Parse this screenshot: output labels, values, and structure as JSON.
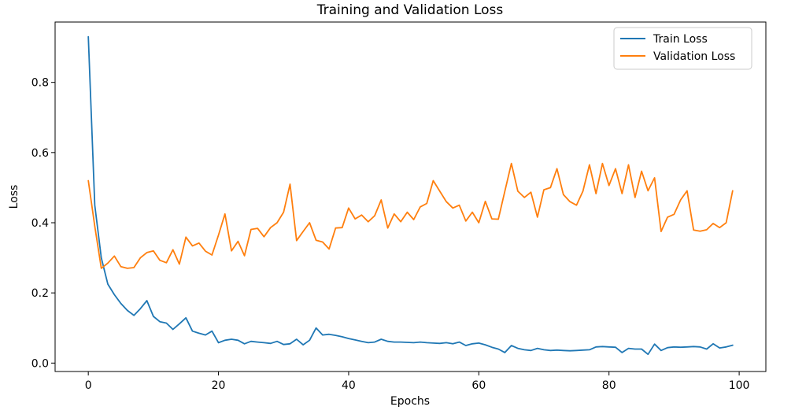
{
  "chart_data": {
    "type": "line",
    "title": "Training and Validation Loss",
    "xlabel": "Epochs",
    "ylabel": "Loss",
    "grid": false,
    "legend_position": "upper right",
    "xlim": [
      -5.1,
      104.1
    ],
    "ylim": [
      -0.024,
      0.972
    ],
    "x_ticks": [
      0,
      20,
      40,
      60,
      80,
      100
    ],
    "y_ticks": [
      0.0,
      0.2,
      0.4,
      0.6,
      0.8
    ],
    "x": [
      0,
      1,
      2,
      3,
      4,
      5,
      6,
      7,
      8,
      9,
      10,
      11,
      12,
      13,
      14,
      15,
      16,
      17,
      18,
      19,
      20,
      21,
      22,
      23,
      24,
      25,
      26,
      27,
      28,
      29,
      30,
      31,
      32,
      33,
      34,
      35,
      36,
      37,
      38,
      39,
      40,
      41,
      42,
      43,
      44,
      45,
      46,
      47,
      48,
      49,
      50,
      51,
      52,
      53,
      54,
      55,
      56,
      57,
      58,
      59,
      60,
      61,
      62,
      63,
      64,
      65,
      66,
      67,
      68,
      69,
      70,
      71,
      72,
      73,
      74,
      75,
      76,
      77,
      78,
      79,
      80,
      81,
      82,
      83,
      84,
      85,
      86,
      87,
      88,
      89,
      90,
      91,
      92,
      93,
      94,
      95,
      96,
      97,
      98,
      99
    ],
    "series": [
      {
        "name": "Train Loss",
        "color": "#1f77b4",
        "values": [
          0.93,
          0.45,
          0.3,
          0.225,
          0.195,
          0.17,
          0.15,
          0.136,
          0.155,
          0.178,
          0.133,
          0.118,
          0.114,
          0.096,
          0.112,
          0.129,
          0.091,
          0.085,
          0.08,
          0.091,
          0.058,
          0.065,
          0.068,
          0.065,
          0.055,
          0.062,
          0.06,
          0.058,
          0.056,
          0.062,
          0.053,
          0.055,
          0.068,
          0.052,
          0.065,
          0.1,
          0.08,
          0.082,
          0.079,
          0.075,
          0.07,
          0.066,
          0.062,
          0.058,
          0.06,
          0.068,
          0.062,
          0.06,
          0.06,
          0.059,
          0.058,
          0.06,
          0.058,
          0.057,
          0.056,
          0.058,
          0.055,
          0.06,
          0.05,
          0.055,
          0.057,
          0.052,
          0.045,
          0.04,
          0.03,
          0.05,
          0.042,
          0.038,
          0.036,
          0.042,
          0.038,
          0.036,
          0.037,
          0.036,
          0.035,
          0.036,
          0.037,
          0.038,
          0.046,
          0.047,
          0.046,
          0.045,
          0.03,
          0.042,
          0.04,
          0.04,
          0.025,
          0.054,
          0.036,
          0.044,
          0.046,
          0.045,
          0.046,
          0.047,
          0.046,
          0.04,
          0.055,
          0.043,
          0.046,
          0.051
        ]
      },
      {
        "name": "Validation Loss",
        "color": "#ff7f0e",
        "values": [
          0.52,
          0.39,
          0.27,
          0.285,
          0.305,
          0.275,
          0.27,
          0.272,
          0.3,
          0.315,
          0.32,
          0.293,
          0.286,
          0.323,
          0.282,
          0.359,
          0.334,
          0.342,
          0.319,
          0.308,
          0.365,
          0.425,
          0.32,
          0.347,
          0.306,
          0.381,
          0.384,
          0.36,
          0.386,
          0.4,
          0.43,
          0.51,
          0.349,
          0.375,
          0.4,
          0.35,
          0.345,
          0.325,
          0.385,
          0.386,
          0.442,
          0.411,
          0.422,
          0.403,
          0.42,
          0.465,
          0.385,
          0.425,
          0.403,
          0.43,
          0.409,
          0.445,
          0.455,
          0.52,
          0.49,
          0.46,
          0.442,
          0.45,
          0.405,
          0.43,
          0.4,
          0.461,
          0.411,
          0.41,
          0.49,
          0.569,
          0.49,
          0.472,
          0.487,
          0.416,
          0.494,
          0.5,
          0.554,
          0.48,
          0.46,
          0.45,
          0.49,
          0.565,
          0.483,
          0.569,
          0.506,
          0.554,
          0.483,
          0.565,
          0.472,
          0.547,
          0.491,
          0.528,
          0.375,
          0.416,
          0.424,
          0.465,
          0.491,
          0.379,
          0.376,
          0.38,
          0.398,
          0.386,
          0.4,
          0.491
        ]
      }
    ],
    "colors": {
      "train": "#1f77b4",
      "validation": "#ff7f0e",
      "spine": "#000000",
      "legend_border": "#cbcbcb",
      "background": "#ffffff"
    }
  }
}
